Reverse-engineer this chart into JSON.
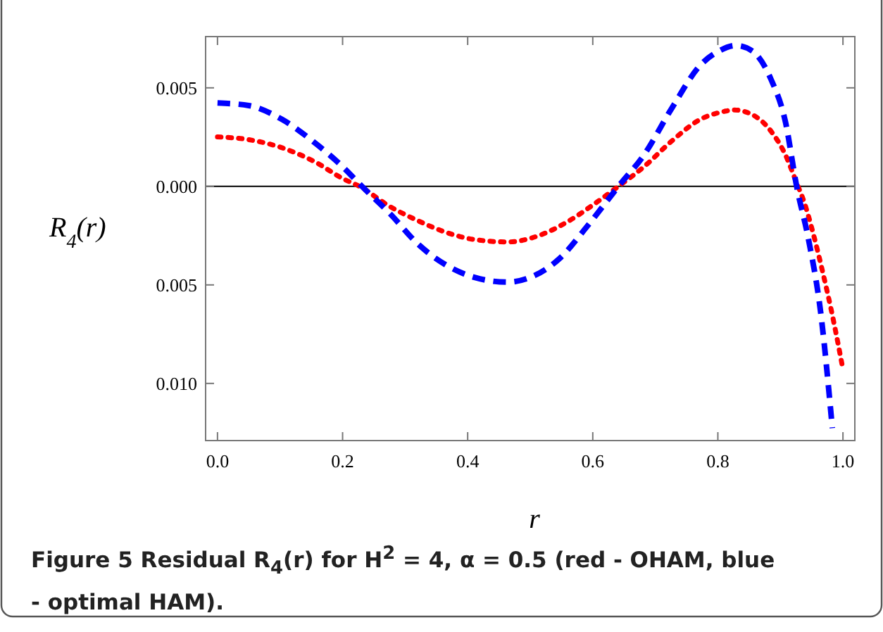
{
  "chart_data": {
    "type": "line",
    "xlabel": "r",
    "ylabel": "R$_{4}$(r)",
    "xlim": [
      -0.019,
      1.019
    ],
    "xticks": [
      {
        "value": 0,
        "label": "0.0"
      },
      0.2,
      0.4,
      0.6,
      0.8,
      {
        "value": 1,
        "label": "1.0"
      }
    ],
    "ylim": [
      -0.0129,
      0.0076
    ],
    "yticks": [
      0.005,
      {
        "value": 0,
        "label": "0.000"
      },
      {
        "value": -0.005,
        "label": "0.005"
      },
      {
        "value": -0.01,
        "label": "0.010"
      }
    ],
    "grid": false,
    "ref_lines": [
      {
        "axis": "y",
        "value": 0,
        "color": "#000000"
      }
    ],
    "annotations": [
      "Figure 5 Residual R$_{4}$(r) for H$^{2}$ = 4, α = 0.5 (red - OHAM, blue - optimal HAM)."
    ],
    "series": [
      {
        "color": "#ff0000",
        "line_style": "dotted",
        "x": [
          0,
          0.05,
          0.103,
          0.156,
          0.2,
          0.227,
          0.276,
          0.321,
          0.366,
          0.411,
          0.464,
          0.517,
          0.562,
          0.607,
          0.641,
          0.682,
          0.727,
          0.772,
          0.81,
          0.825,
          0.855,
          0.885,
          0.908,
          0.926,
          0.938,
          0.953,
          0.968,
          0.983,
          1.0
        ],
        "values": [
          0.00251,
          0.00237,
          0.00196,
          0.00124,
          0.0004,
          0,
          -0.00103,
          -0.00175,
          -0.00234,
          -0.0027,
          -0.00282,
          -0.00246,
          -0.00175,
          -0.00079,
          0,
          0.001,
          0.00232,
          0.0034,
          0.0038,
          0.00388,
          0.00364,
          0.0028,
          0.0016,
          0.00017,
          -0.0008,
          -0.00246,
          -0.0044,
          -0.00653,
          -0.00928
        ]
      },
      {
        "color": "#0000ff",
        "line_style": "dashed",
        "x": [
          0,
          0.05,
          0.103,
          0.156,
          0.2,
          0.231,
          0.276,
          0.321,
          0.366,
          0.411,
          0.464,
          0.5,
          0.547,
          0.592,
          0.641,
          0.682,
          0.727,
          0.772,
          0.802,
          0.829,
          0.855,
          0.885,
          0.908,
          0.926,
          0.945,
          0.964,
          0.983
        ],
        "values": [
          0.00423,
          0.0041,
          0.0034,
          0.0022,
          0.001,
          0,
          -0.00139,
          -0.00294,
          -0.004,
          -0.00462,
          -0.00486,
          -0.00462,
          -0.00366,
          -0.00199,
          0,
          0.0016,
          0.004,
          0.00615,
          0.00687,
          0.00715,
          0.00687,
          0.00543,
          0.00328,
          0,
          -0.0027,
          -0.0063,
          -0.01227
        ]
      }
    ]
  }
}
